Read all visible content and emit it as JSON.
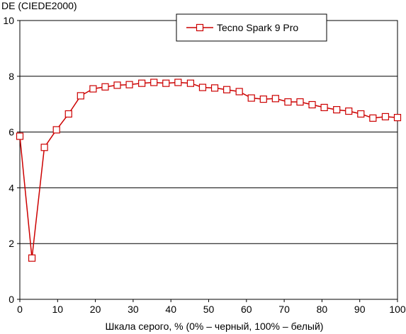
{
  "chart_data": {
    "type": "line",
    "title": "",
    "ylabel": "DE (CIEDE2000)",
    "xlabel": "Шкала серого, % (0% – черный, 100% – белый)",
    "xlim": [
      0,
      100
    ],
    "ylim": [
      0,
      10
    ],
    "x_ticks": [
      0,
      10,
      20,
      30,
      40,
      50,
      60,
      70,
      80,
      90,
      100
    ],
    "y_ticks": [
      0,
      2,
      4,
      6,
      8,
      10
    ],
    "grid": "horizontal",
    "legend_position": "top-right",
    "series": [
      {
        "name": "Tecno Spark 9 Pro",
        "color": "#cc0000",
        "marker": "square-open",
        "x": [
          0,
          3.2,
          6.5,
          9.7,
          12.9,
          16.1,
          19.4,
          22.6,
          25.8,
          29,
          32.3,
          35.5,
          38.7,
          41.9,
          45.2,
          48.4,
          51.6,
          54.8,
          58.1,
          61.3,
          64.5,
          67.7,
          71,
          74.2,
          77.4,
          80.6,
          83.9,
          87.1,
          90.3,
          93.5,
          96.8,
          100
        ],
        "y": [
          5.85,
          1.48,
          5.45,
          6.08,
          6.65,
          7.3,
          7.55,
          7.62,
          7.68,
          7.7,
          7.75,
          7.78,
          7.75,
          7.78,
          7.75,
          7.6,
          7.58,
          7.52,
          7.45,
          7.22,
          7.18,
          7.2,
          7.08,
          7.08,
          6.98,
          6.88,
          6.8,
          6.75,
          6.65,
          6.5,
          6.55,
          6.52
        ]
      }
    ]
  }
}
